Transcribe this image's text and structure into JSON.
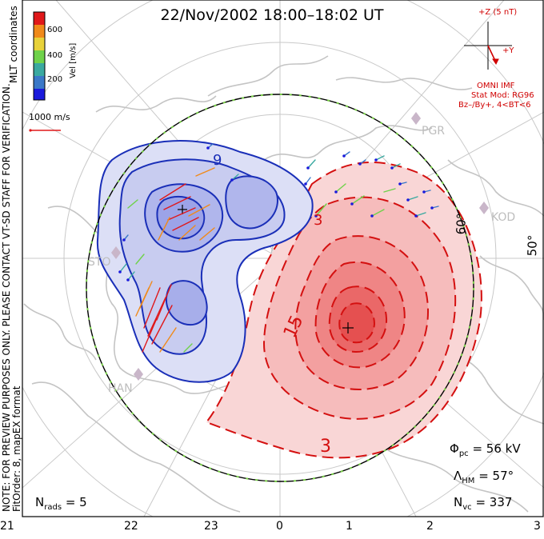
{
  "title": "22/Nov/2002 18:00–18:02 UT",
  "colorbar": {
    "label": "Vel [m/s]",
    "ticks": [
      "600",
      "400",
      "200"
    ],
    "colors": [
      "#1a1adc",
      "#3a78c8",
      "#3aa9a0",
      "#6fd24a",
      "#e8d23a",
      "#f08a1a",
      "#e0181a"
    ]
  },
  "coords_label": "MLT coordinates",
  "scale_vector": "1000 m/s",
  "imf": {
    "z_label": "+Z (5 nT)",
    "y_label": "+Y",
    "source": "OMNI IMF",
    "stat_mod": "Stat Mod: RG96",
    "condition": "Bz–/By+, 4<BT<6"
  },
  "left_notice": {
    "line1": "NOTE: FOR PREVIEW PURPOSES ONLY. PLEASE CONTACT VT-SD STAFF FOR VERIFICATION.",
    "line2": "FitOrder: 8, mapEX format"
  },
  "stations": [
    "PGR",
    "KOD",
    "STO",
    "HAN"
  ],
  "latitude_labels": [
    "60°",
    "50°"
  ],
  "contour_labels": {
    "neg_small": "9",
    "pos_big": "15",
    "pos_small_top": "3",
    "pos_small_bottom": "3"
  },
  "stats": {
    "phi_sym": "Φ",
    "phi_sub": "pc",
    "phi_val": "= 56 kV",
    "lam_sym": "Λ",
    "lam_sub": "HM",
    "lam_val": "= 57°",
    "nvc_sym": "N",
    "nvc_sub": "vc",
    "nvc_val": "= 337",
    "nrads_sym": "N",
    "nrads_sub": "rads",
    "nrads_val": "= 5"
  },
  "mlt_ticks": [
    "21",
    "22",
    "23",
    "0",
    "1",
    "2",
    "3"
  ],
  "colors": {
    "negative_contour": "#1a2fb8",
    "positive_contour": "#d41010",
    "negative_fill": "#cdd0f2",
    "positive_fill": "#f7cccc",
    "coast": "#c8c8c8",
    "boundary_green": "#7ad04a"
  }
}
